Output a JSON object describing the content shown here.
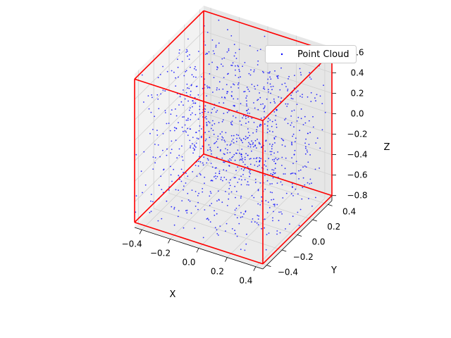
{
  "chart_data": {
    "type": "scatter",
    "projection": "3d",
    "title": "",
    "xlabel": "X",
    "ylabel": "Y",
    "zlabel": "Z",
    "xlim": [
      -0.45,
      0.45
    ],
    "ylim": [
      -0.45,
      0.45
    ],
    "zlim": [
      -0.85,
      0.65
    ],
    "x_ticks": [
      -0.4,
      -0.2,
      0.0,
      0.2,
      0.4
    ],
    "y_ticks": [
      -0.4,
      -0.2,
      0.0,
      0.2,
      0.4
    ],
    "z_ticks": [
      0.6,
      0.4,
      0.2,
      0.0,
      -0.2,
      -0.4,
      -0.6,
      -0.8
    ],
    "x_tick_labels": [
      "−0.4",
      "−0.2",
      "0.0",
      "0.2",
      "0.4"
    ],
    "y_tick_labels": [
      "−0.4",
      "−0.2",
      "0.0",
      "0.2",
      "0.4"
    ],
    "z_tick_labels": [
      "0.6",
      "0.4",
      "0.2",
      "0.0",
      "−0.2",
      "−0.4",
      "−0.6",
      "−0.8"
    ],
    "grid": true,
    "legend_position": "top-right",
    "series": [
      {
        "name": "Point Cloud",
        "color": "#0000ff",
        "marker": "point",
        "distribution": "uniform random inside box",
        "bounds": {
          "x": [
            -0.45,
            0.45
          ],
          "y": [
            -0.45,
            0.45
          ],
          "z": [
            -0.8,
            0.6
          ]
        },
        "approx_count": 1000
      }
    ],
    "bounding_box": {
      "color": "#ff0000",
      "x": [
        -0.45,
        0.45
      ],
      "y": [
        -0.45,
        0.45
      ],
      "z": [
        -0.8,
        0.6
      ]
    }
  }
}
